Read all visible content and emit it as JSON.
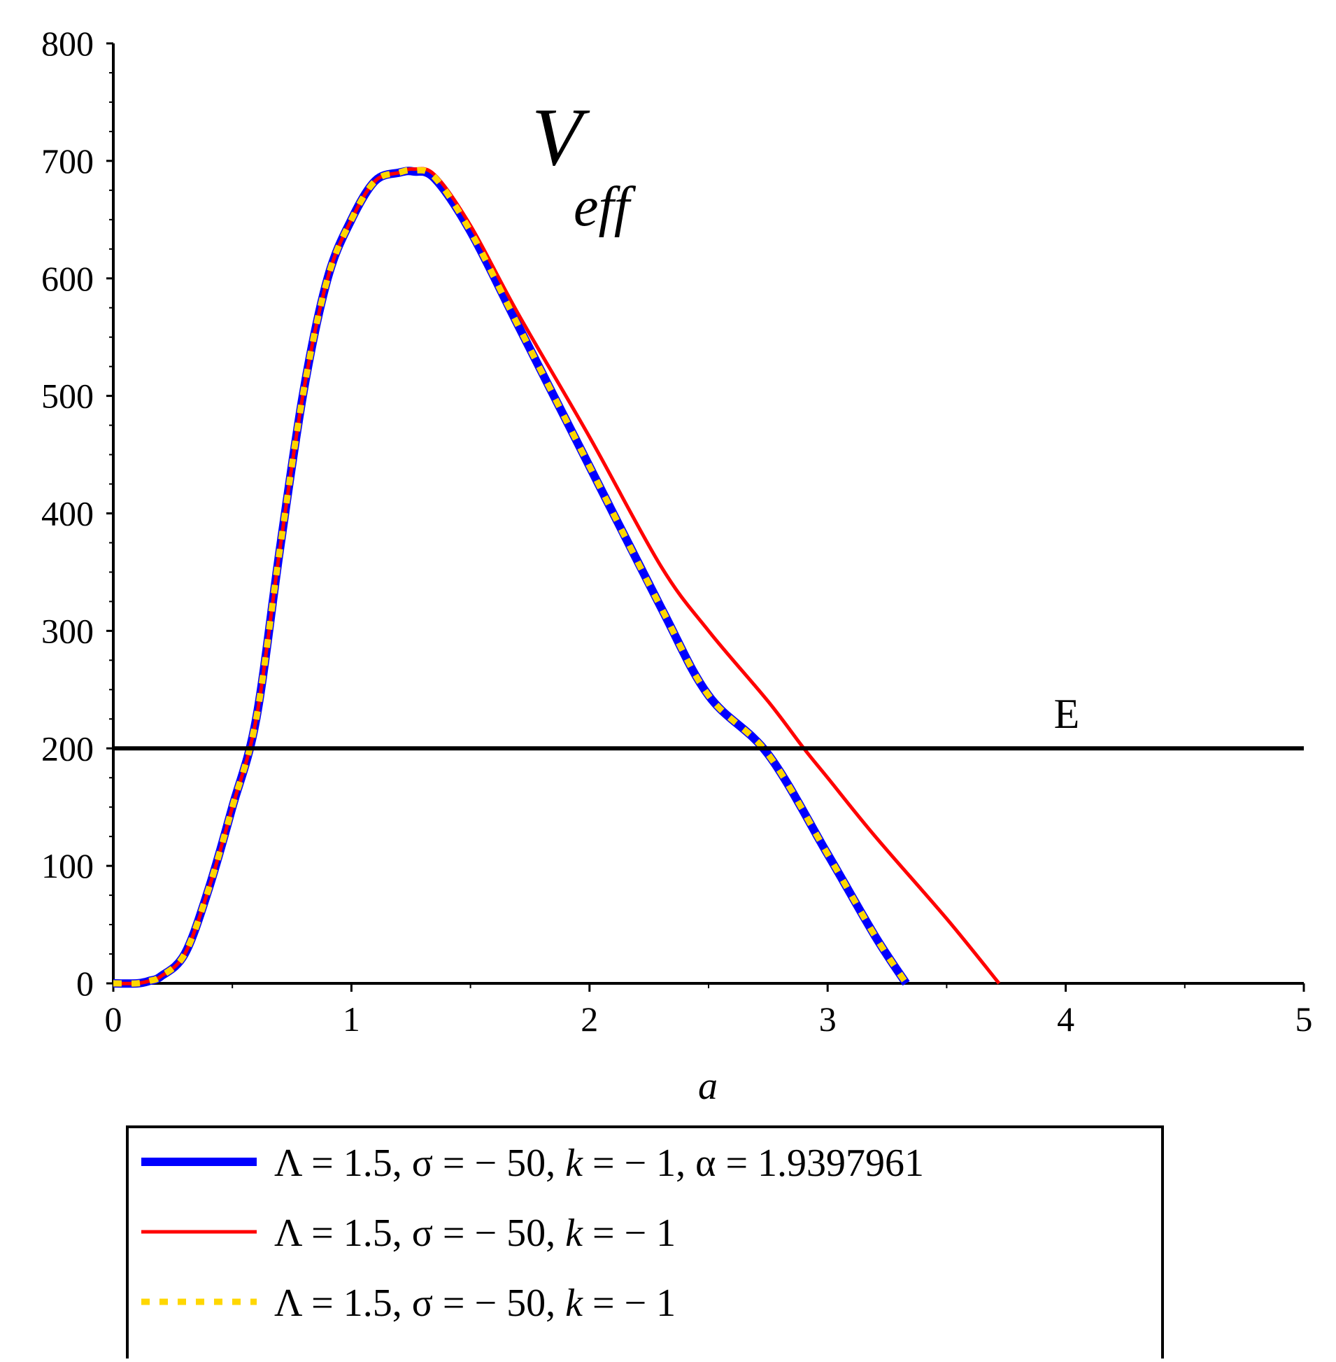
{
  "chart_data": {
    "type": "line",
    "xlabel": "a",
    "ylabel": "",
    "annotation": {
      "main": "V",
      "subscript": "eff"
    },
    "xlim": [
      0,
      5
    ],
    "ylim": [
      0,
      800
    ],
    "xticks": [
      0,
      1,
      2,
      3,
      4,
      5
    ],
    "yticks": [
      0,
      100,
      200,
      300,
      400,
      500,
      600,
      700,
      800
    ],
    "grid": false,
    "legend_position": "bottom",
    "reference_line": {
      "label": "E",
      "y": 200,
      "color": "#000000"
    },
    "series": [
      {
        "name": "Λ = 1.5, σ = − 50, k = − 1, α = 1.9397961",
        "color": "#0000ff",
        "style": "solid-thick",
        "x": [
          0.0,
          0.1,
          0.15,
          0.2,
          0.3,
          0.4,
          0.5,
          0.6,
          0.7,
          0.8,
          0.9,
          1.0,
          1.1,
          1.2,
          1.26,
          1.35,
          1.5,
          1.7,
          2.0,
          2.3,
          2.5,
          2.75,
          3.0,
          3.2,
          3.33
        ],
        "y": [
          0,
          0,
          2,
          6,
          25,
          80,
          150,
          225,
          370,
          505,
          600,
          650,
          683,
          690,
          691,
          685,
          640,
          560,
          440,
          320,
          245,
          195,
          110,
          40,
          0
        ]
      },
      {
        "name": "Λ = 1.5, σ = − 50, k = − 1",
        "color": "#ff0000",
        "style": "solid-thin",
        "x": [
          0.0,
          0.1,
          0.15,
          0.2,
          0.3,
          0.4,
          0.5,
          0.6,
          0.7,
          0.8,
          0.9,
          1.0,
          1.1,
          1.2,
          1.26,
          1.35,
          1.5,
          1.7,
          2.0,
          2.3,
          2.5,
          2.75,
          2.9,
          3.0,
          3.2,
          3.5,
          3.72
        ],
        "y": [
          0,
          0,
          2,
          6,
          25,
          80,
          150,
          225,
          370,
          505,
          600,
          650,
          683,
          690,
          693,
          688,
          645,
          570,
          465,
          355,
          300,
          240,
          200,
          175,
          125,
          55,
          0
        ]
      },
      {
        "name": "Λ = 1.5, σ = − 50, k = − 1",
        "color": "#ffd700",
        "style": "dotted",
        "x": [
          0.0,
          0.1,
          0.15,
          0.2,
          0.3,
          0.4,
          0.5,
          0.6,
          0.7,
          0.8,
          0.9,
          1.0,
          1.1,
          1.2,
          1.26,
          1.35,
          1.5,
          1.7,
          2.0,
          2.3,
          2.5,
          2.75,
          3.0,
          3.2,
          3.33
        ],
        "y": [
          0,
          0,
          2,
          6,
          25,
          80,
          150,
          225,
          370,
          505,
          600,
          650,
          683,
          690,
          692,
          686,
          640,
          560,
          440,
          320,
          245,
          195,
          110,
          40,
          0
        ]
      }
    ]
  }
}
